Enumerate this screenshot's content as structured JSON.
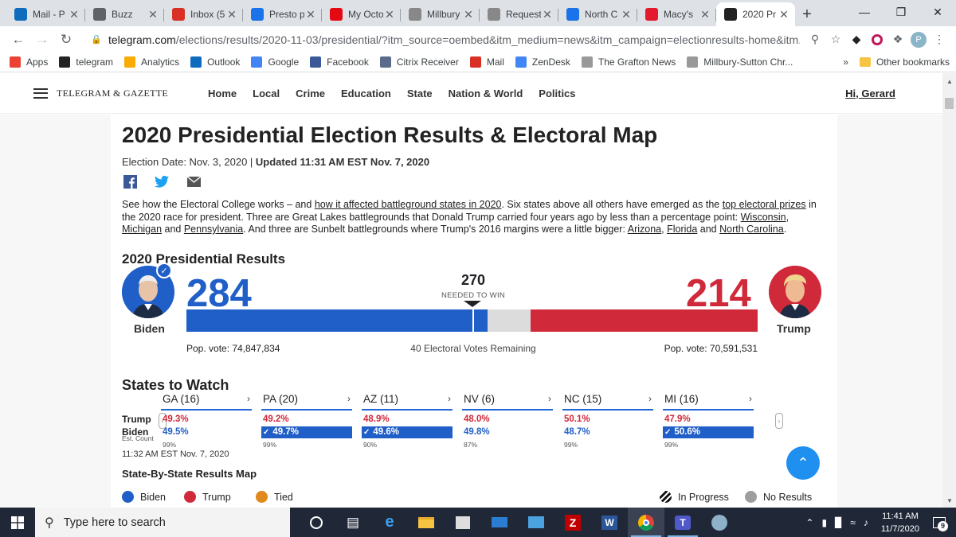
{
  "browser": {
    "tabs": [
      {
        "title": "Mail - P",
        "icon": "outlook-icon",
        "color": "#0f6cbd"
      },
      {
        "title": "Buzz",
        "icon": "buzz-icon",
        "color": "#5f6368"
      },
      {
        "title": "Inbox (5",
        "icon": "gmail-icon",
        "color": "#d93025"
      },
      {
        "title": "Presto p",
        "icon": "presto-icon",
        "color": "#1a73e8"
      },
      {
        "title": "My Octo",
        "icon": "netflix-icon",
        "color": "#e50914"
      },
      {
        "title": "Millbury",
        "icon": "news-icon",
        "color": "#888888"
      },
      {
        "title": "Request",
        "icon": "request-icon",
        "color": "#888888"
      },
      {
        "title": "North C",
        "icon": "north-icon",
        "color": "#1a73e8"
      },
      {
        "title": "Macy's",
        "icon": "macys-star-icon",
        "color": "#e21a2c"
      },
      {
        "title": "2020 Pr",
        "icon": "telegram-t-icon",
        "color": "#222222"
      }
    ],
    "url_host": "telegram.com",
    "url_rest": "/elections/results/2020-11-03/presidential/?itm_source=oembed&itm_medium=news&itm_campaign=electionresults-home&itm...",
    "profile_initial": "P",
    "bookmarks": [
      {
        "label": "Apps",
        "icon": "apps-grid-icon"
      },
      {
        "label": "telegram",
        "icon": "telegram-t-icon"
      },
      {
        "label": "Analytics",
        "icon": "analytics-icon"
      },
      {
        "label": "Outlook",
        "icon": "outlook-icon"
      },
      {
        "label": "Google",
        "icon": "google-icon"
      },
      {
        "label": "Facebook",
        "icon": "facebook-icon"
      },
      {
        "label": "Citrix Receiver",
        "icon": "citrix-icon"
      },
      {
        "label": "Mail",
        "icon": "gmail-icon"
      },
      {
        "label": "ZenDesk",
        "icon": "google-icon"
      },
      {
        "label": "The Grafton News",
        "icon": "news-icon"
      },
      {
        "label": "Millbury-Sutton Chr...",
        "icon": "news-icon"
      }
    ],
    "more_bookmarks": "»",
    "other_bookmarks": "Other bookmarks"
  },
  "site": {
    "logo": "TELEGRAM & GAZETTE",
    "nav": [
      "Home",
      "Local",
      "Crime",
      "Education",
      "State",
      "Nation & World",
      "Politics"
    ],
    "greeting": "Hi, Gerard"
  },
  "article": {
    "title": "2020 Presidential Election Results & Electoral Map",
    "date_prefix": "Election Date: Nov. 3, 2020 | ",
    "updated": "Updated 11:31 AM EST Nov. 7, 2020",
    "intro": {
      "t1": "See how the Electoral College works – and ",
      "l1": "how it affected battleground states in 2020",
      "t2": ". Six states above all others have emerged as the ",
      "l2": "top electoral prizes",
      "t3": " in the 2020 race for president. Three are Great Lakes battlegrounds that Donald Trump carried four years ago by less than a percentage point: ",
      "l3": "Wisconsin",
      "t4": ", ",
      "l4": "Michigan",
      "t5": " and ",
      "l5": "Pennsylvania",
      "t6": ". And three are Sunbelt battlegrounds where Trump's 2016 margins were a little bigger: ",
      "l6": "Arizona",
      "t7": ", ",
      "l7": "Florida",
      "t8": " and ",
      "l8": "North Carolina",
      "t9": "."
    }
  },
  "results": {
    "title": "2020 Presidential Results",
    "needed": "270",
    "needed_label": "NEEDED TO WIN",
    "remaining_label": "40 Electoral Votes Remaining",
    "total_votes": 538,
    "biden": {
      "name": "Biden",
      "electoral": "284",
      "ev_value": 284,
      "popvote": "Pop. vote: 74,847,834",
      "color": "#1f5fc7"
    },
    "trump": {
      "name": "Trump",
      "electoral": "214",
      "ev_value": 214,
      "popvote": "Pop. vote: 70,591,531",
      "color": "#d0293a"
    }
  },
  "watch": {
    "title": "States to Watch",
    "row_trump": "Trump",
    "row_biden": "Biden",
    "row_est": "Est. Count",
    "states": [
      {
        "name": "GA (16)",
        "trump": "49.3%",
        "biden": "49.5%",
        "count": "99%",
        "biden_win": false
      },
      {
        "name": "PA (20)",
        "trump": "49.2%",
        "biden": "49.7%",
        "count": "99%",
        "biden_win": true
      },
      {
        "name": "AZ (11)",
        "trump": "48.9%",
        "biden": "49.6%",
        "count": "90%",
        "biden_win": true
      },
      {
        "name": "NV (6)",
        "trump": "48.0%",
        "biden": "49.8%",
        "count": "87%",
        "biden_win": false
      },
      {
        "name": "NC (15)",
        "trump": "50.1%",
        "biden": "48.7%",
        "count": "99%",
        "biden_win": false
      },
      {
        "name": "MI (16)",
        "trump": "47.9%",
        "biden": "50.6%",
        "count": "99%",
        "biden_win": true
      }
    ],
    "timestamp": "11:32 AM EST Nov. 7, 2020"
  },
  "map": {
    "title": "State-By-State Results Map",
    "legend": [
      {
        "label": "Biden",
        "color": "#1f5fc7"
      },
      {
        "label": "Trump",
        "color": "#d0293a"
      },
      {
        "label": "Tied",
        "color": "#e08a1e"
      },
      {
        "label": "In Progress",
        "color": "#111111"
      },
      {
        "label": "No Results",
        "color": "#9e9e9e"
      }
    ]
  },
  "taskbar": {
    "search_placeholder": "Type here to search",
    "time": "11:41 AM",
    "date": "11/7/2020",
    "notifications": "9"
  }
}
